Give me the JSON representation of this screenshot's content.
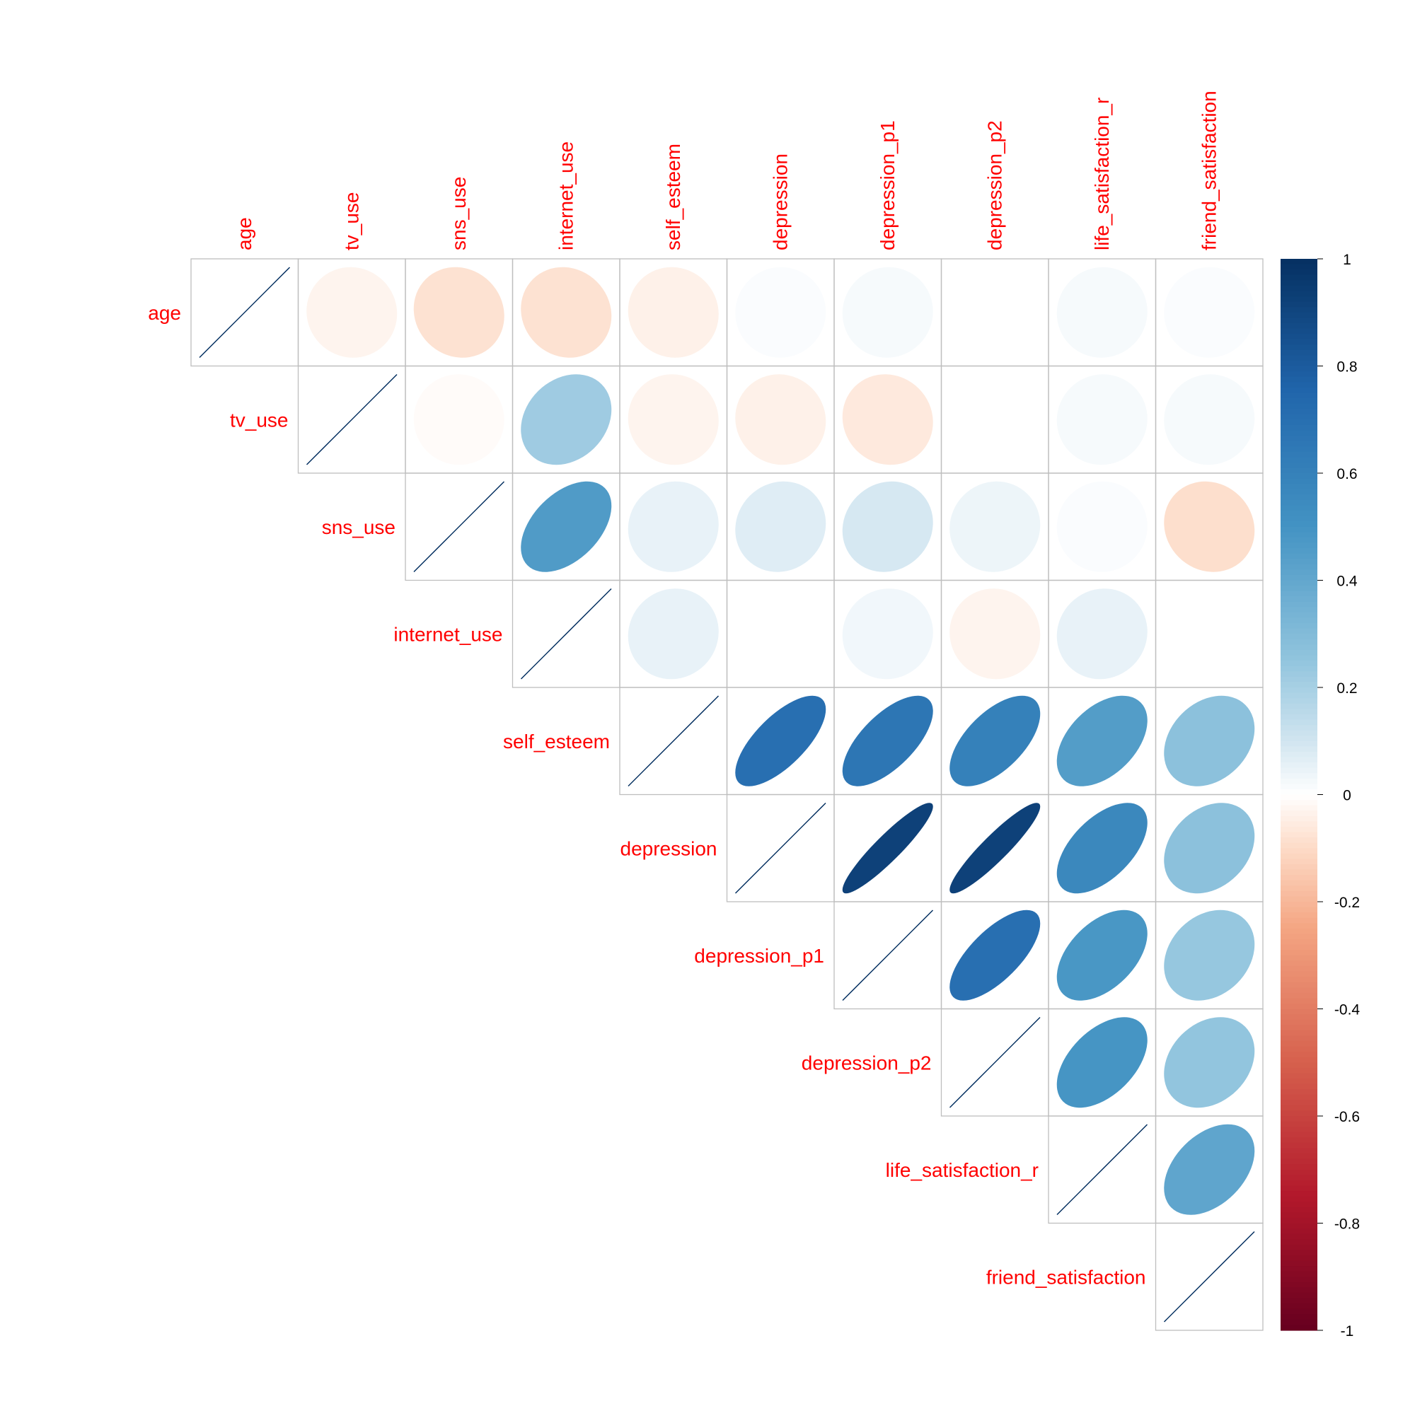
{
  "chart_data": {
    "type": "heatmap",
    "method": "ellipse",
    "layout": "upper-triangle",
    "variables": [
      "age",
      "tv_use",
      "sns_use",
      "internet_use",
      "self_esteem",
      "depression",
      "depression_p1",
      "depression_p2",
      "life_satisfaction_r",
      "friend_satisfaction"
    ],
    "matrix": [
      [
        1,
        -0.03,
        -0.08,
        -0.08,
        -0.04,
        0.01,
        0.02,
        0.0,
        0.02,
        0.01
      ],
      [
        -0.03,
        1,
        -0.01,
        0.22,
        -0.03,
        -0.04,
        -0.06,
        0.0,
        0.02,
        0.02
      ],
      [
        -0.08,
        -0.01,
        1,
        0.46,
        0.05,
        0.07,
        0.09,
        0.04,
        0.01,
        -0.09
      ],
      [
        -0.08,
        0.22,
        0.46,
        1,
        0.05,
        0.0,
        0.03,
        -0.03,
        0.05,
        0.0
      ],
      [
        -0.04,
        -0.03,
        0.05,
        0.05,
        1,
        0.7,
        0.66,
        0.6,
        0.45,
        0.27
      ],
      [
        0.01,
        -0.04,
        0.07,
        0.0,
        0.7,
        1,
        0.92,
        0.92,
        0.56,
        0.27
      ],
      [
        0.02,
        -0.06,
        0.09,
        0.03,
        0.66,
        0.92,
        1,
        0.7,
        0.48,
        0.24
      ],
      [
        0.0,
        0.0,
        0.04,
        -0.03,
        0.6,
        0.92,
        0.7,
        1,
        0.49,
        0.25
      ],
      [
        0.02,
        0.02,
        0.01,
        0.05,
        0.45,
        0.56,
        0.48,
        0.49,
        1,
        0.41
      ],
      [
        0.01,
        0.02,
        -0.09,
        0.0,
        0.27,
        0.27,
        0.24,
        0.25,
        0.41,
        1
      ]
    ],
    "color_scale": {
      "range": [
        -1,
        1
      ],
      "stops": [
        [
          -1,
          "#67001F"
        ],
        [
          -0.75,
          "#B2182B"
        ],
        [
          -0.5,
          "#D6604D"
        ],
        [
          -0.25,
          "#F4A582"
        ],
        [
          -0.1,
          "#FDDBC7"
        ],
        [
          0,
          "#FFFFFF"
        ],
        [
          0.1,
          "#D1E5F0"
        ],
        [
          0.25,
          "#92C5DE"
        ],
        [
          0.5,
          "#4393C3"
        ],
        [
          0.75,
          "#2166AC"
        ],
        [
          1,
          "#053061"
        ]
      ]
    },
    "legend": {
      "ticks": [
        1,
        0.8,
        0.6,
        0.4,
        0.2,
        0,
        -0.2,
        -0.4,
        -0.6,
        -0.8,
        -1
      ],
      "tick_labels": [
        "1",
        "0.8",
        "0.6",
        "0.4",
        "0.2",
        "0",
        "-0.2",
        "-0.4",
        "-0.6",
        "-0.8",
        "-1"
      ],
      "placement": "right"
    },
    "colors": {
      "label": "#FF0000",
      "grid": "#BEBEBE",
      "diagonal": "#053061"
    }
  }
}
